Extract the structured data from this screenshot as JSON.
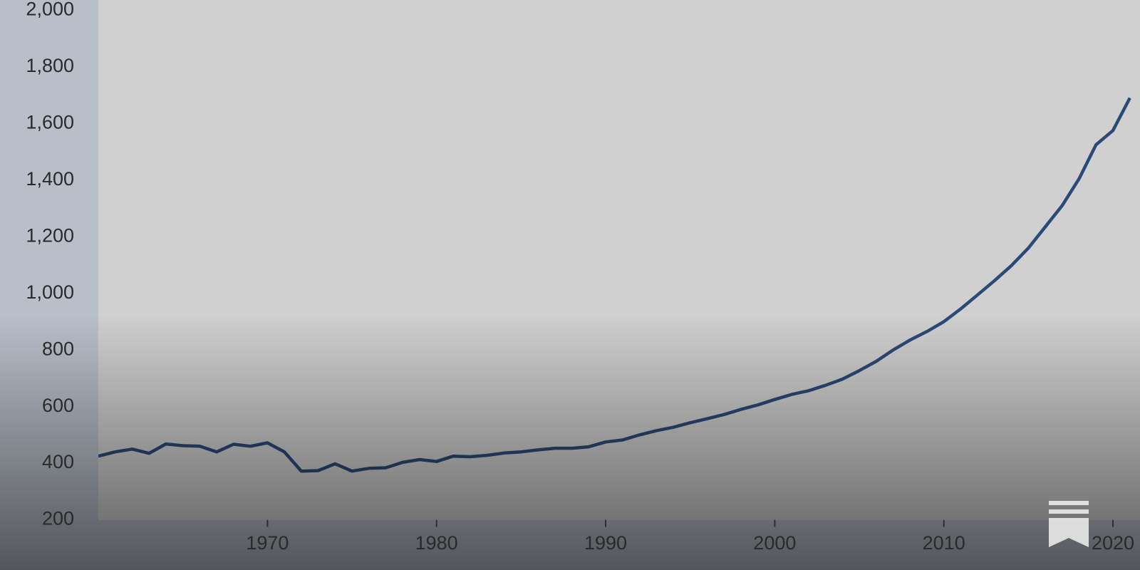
{
  "chart_data": {
    "type": "line",
    "x": [
      1960,
      1961,
      1962,
      1963,
      1964,
      1965,
      1966,
      1967,
      1968,
      1969,
      1970,
      1971,
      1972,
      1973,
      1974,
      1975,
      1976,
      1977,
      1978,
      1979,
      1980,
      1981,
      1982,
      1983,
      1984,
      1985,
      1986,
      1987,
      1988,
      1989,
      1990,
      1991,
      1992,
      1993,
      1994,
      1995,
      1996,
      1997,
      1998,
      1999,
      2000,
      2001,
      2002,
      2003,
      2004,
      2005,
      2006,
      2007,
      2008,
      2009,
      2010,
      2011,
      2012,
      2013,
      2014,
      2015,
      2016,
      2017,
      2018,
      2019,
      2020,
      2021
    ],
    "series": [
      {
        "color": "#2c4a78",
        "values": [
          425,
          440,
          450,
          435,
          468,
          462,
          460,
          440,
          467,
          460,
          472,
          440,
          372,
          374,
          398,
          372,
          382,
          384,
          403,
          413,
          406,
          425,
          423,
          428,
          436,
          440,
          447,
          453,
          453,
          458,
          475,
          482,
          500,
          515,
          527,
          543,
          557,
          572,
          590,
          606,
          625,
          643,
          656,
          675,
          697,
          727,
          760,
          800,
          835,
          865,
          900,
          945,
          995,
          1045,
          1098,
          1160,
          1235,
          1310,
          1405,
          1525,
          1575,
          1690
        ]
      }
    ],
    "xlim": [
      1960,
      2021.6
    ],
    "xticks": [
      1970,
      1980,
      1990,
      2000,
      2010,
      2020
    ],
    "ylim": [
      200,
      2000
    ],
    "yticks": [
      200,
      400,
      600,
      800,
      {
        "value": 1000,
        "label": "1,000"
      },
      {
        "value": 1200,
        "label": "1,200"
      },
      {
        "value": 1400,
        "label": "1,400"
      },
      {
        "value": 1600,
        "label": "1,600"
      },
      {
        "value": 1800,
        "label": "1,800"
      },
      {
        "value": 2000,
        "label": "2,000"
      }
    ],
    "grid": true
  }
}
